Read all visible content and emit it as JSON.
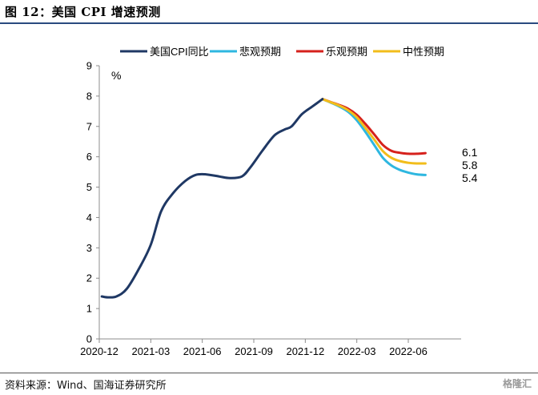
{
  "figure": {
    "title": "图 12：美国 CPI 增速预测",
    "source": "资料来源：Wind、国海证券研究所",
    "watermark": "格隆汇"
  },
  "chart_data": {
    "type": "line",
    "ylabel": "%",
    "ylim": [
      0,
      9
    ],
    "yticks": [
      "0",
      "1",
      "2",
      "3",
      "4",
      "5",
      "6",
      "7",
      "8",
      "9"
    ],
    "x_tick_labels": [
      "2020-12",
      "2021-03",
      "2021-06",
      "2021-09",
      "2021-12",
      "2022-03",
      "2022-06"
    ],
    "x_months_range": [
      0,
      20
    ],
    "grid": false,
    "legend_position": "top",
    "series": [
      {
        "name": "美国CPI同比",
        "color": "#1f3864",
        "points": [
          [
            0.15,
            1.4
          ],
          [
            0.5,
            1.37
          ],
          [
            1.0,
            1.4
          ],
          [
            1.6,
            1.65
          ],
          [
            2.3,
            2.3
          ],
          [
            3.0,
            3.1
          ],
          [
            3.6,
            4.2
          ],
          [
            4.3,
            4.8
          ],
          [
            5.0,
            5.2
          ],
          [
            5.6,
            5.4
          ],
          [
            6.2,
            5.42
          ],
          [
            7.0,
            5.35
          ],
          [
            7.6,
            5.3
          ],
          [
            8.3,
            5.35
          ],
          [
            8.8,
            5.65
          ],
          [
            9.5,
            6.2
          ],
          [
            10.2,
            6.7
          ],
          [
            10.8,
            6.9
          ],
          [
            11.2,
            7.0
          ],
          [
            11.8,
            7.4
          ],
          [
            12.4,
            7.65
          ],
          [
            13.0,
            7.9
          ]
        ]
      },
      {
        "name": "悲观预期",
        "color": "#2eb7e0",
        "points": [
          [
            13.0,
            7.9
          ],
          [
            13.5,
            7.78
          ],
          [
            14.0,
            7.65
          ],
          [
            14.5,
            7.48
          ],
          [
            15.0,
            7.2
          ],
          [
            15.5,
            6.82
          ],
          [
            16.0,
            6.4
          ],
          [
            16.5,
            5.98
          ],
          [
            17.0,
            5.72
          ],
          [
            17.5,
            5.57
          ],
          [
            18.0,
            5.48
          ],
          [
            18.5,
            5.42
          ],
          [
            19.0,
            5.4
          ]
        ]
      },
      {
        "name": "乐观预期",
        "color": "#d6211c",
        "points": [
          [
            13.0,
            7.9
          ],
          [
            13.5,
            7.8
          ],
          [
            14.0,
            7.7
          ],
          [
            14.5,
            7.58
          ],
          [
            15.0,
            7.38
          ],
          [
            15.5,
            7.08
          ],
          [
            16.0,
            6.75
          ],
          [
            16.5,
            6.4
          ],
          [
            17.0,
            6.2
          ],
          [
            17.5,
            6.13
          ],
          [
            18.0,
            6.1
          ],
          [
            18.5,
            6.1
          ],
          [
            19.0,
            6.12
          ]
        ]
      },
      {
        "name": "中性预期",
        "color": "#f2bd1b",
        "points": [
          [
            13.0,
            7.9
          ],
          [
            13.5,
            7.79
          ],
          [
            14.0,
            7.68
          ],
          [
            14.5,
            7.53
          ],
          [
            15.0,
            7.3
          ],
          [
            15.5,
            6.95
          ],
          [
            16.0,
            6.58
          ],
          [
            16.5,
            6.2
          ],
          [
            17.0,
            5.97
          ],
          [
            17.5,
            5.86
          ],
          [
            18.0,
            5.8
          ],
          [
            18.5,
            5.78
          ],
          [
            19.0,
            5.78
          ]
        ]
      }
    ],
    "end_labels": [
      {
        "text": "6.1",
        "value": 6.12
      },
      {
        "text": "5.8",
        "value": 5.78
      },
      {
        "text": "5.4",
        "value": 5.4
      }
    ]
  }
}
